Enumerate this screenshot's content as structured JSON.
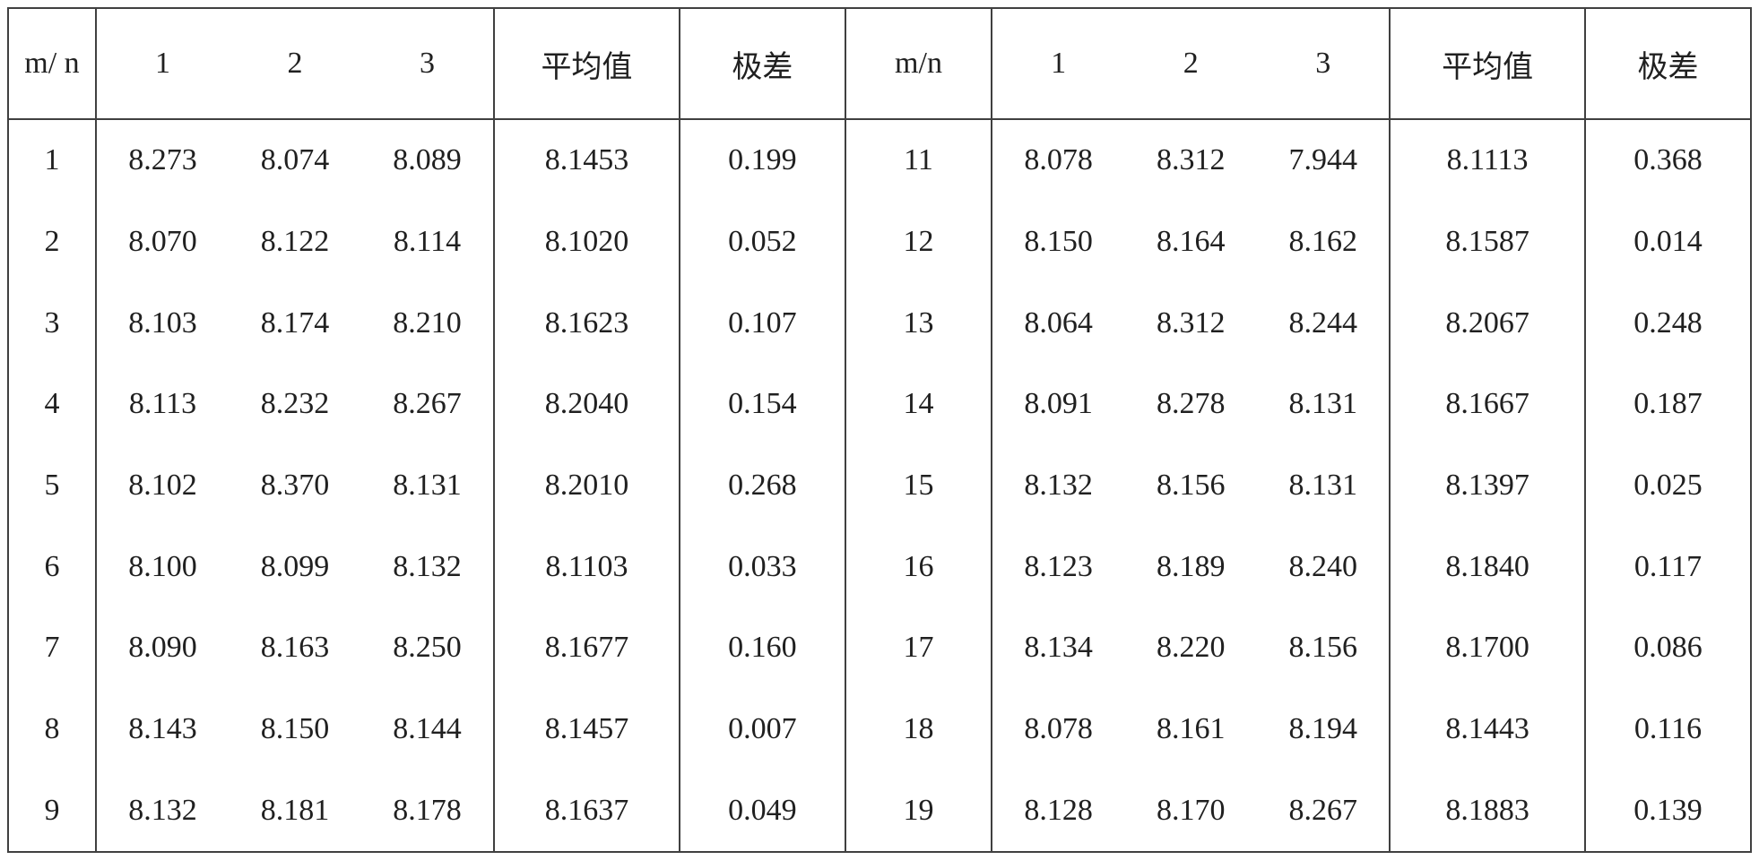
{
  "table": {
    "type": "table",
    "border_color": "#404040",
    "text_color": "#202020",
    "background_color": "#ffffff",
    "font_family": "Times New Roman / SimSun serif",
    "header_fontsize_pt": 26,
    "body_fontsize_pt": 26,
    "columns_left": {
      "mn": "m/\nn",
      "v1": "1",
      "v2": "2",
      "v3": "3",
      "avg": "平均值",
      "range": "极差"
    },
    "columns_right": {
      "mn": "m/n",
      "v1": "1",
      "v2": "2",
      "v3": "3",
      "avg": "平均值",
      "range": "极差"
    },
    "rows": [
      {
        "L": {
          "mn": "1",
          "v1": "8.273",
          "v2": "8.074",
          "v3": "8.089",
          "avg": "8.1453",
          "range": "0.199"
        },
        "R": {
          "mn": "11",
          "v1": "8.078",
          "v2": "8.312",
          "v3": "7.944",
          "avg": "8.1113",
          "range": "0.368"
        }
      },
      {
        "L": {
          "mn": "2",
          "v1": "8.070",
          "v2": "8.122",
          "v3": "8.114",
          "avg": "8.1020",
          "range": "0.052"
        },
        "R": {
          "mn": "12",
          "v1": "8.150",
          "v2": "8.164",
          "v3": "8.162",
          "avg": "8.1587",
          "range": "0.014"
        }
      },
      {
        "L": {
          "mn": "3",
          "v1": "8.103",
          "v2": "8.174",
          "v3": "8.210",
          "avg": "8.1623",
          "range": "0.107"
        },
        "R": {
          "mn": "13",
          "v1": "8.064",
          "v2": "8.312",
          "v3": "8.244",
          "avg": "8.2067",
          "range": "0.248"
        }
      },
      {
        "L": {
          "mn": "4",
          "v1": "8.113",
          "v2": "8.232",
          "v3": "8.267",
          "avg": "8.2040",
          "range": "0.154"
        },
        "R": {
          "mn": "14",
          "v1": "8.091",
          "v2": "8.278",
          "v3": "8.131",
          "avg": "8.1667",
          "range": "0.187"
        }
      },
      {
        "L": {
          "mn": "5",
          "v1": "8.102",
          "v2": "8.370",
          "v3": "8.131",
          "avg": "8.2010",
          "range": "0.268"
        },
        "R": {
          "mn": "15",
          "v1": "8.132",
          "v2": "8.156",
          "v3": "8.131",
          "avg": "8.1397",
          "range": "0.025"
        }
      },
      {
        "L": {
          "mn": "6",
          "v1": "8.100",
          "v2": "8.099",
          "v3": "8.132",
          "avg": "8.1103",
          "range": "0.033"
        },
        "R": {
          "mn": "16",
          "v1": "8.123",
          "v2": "8.189",
          "v3": "8.240",
          "avg": "8.1840",
          "range": "0.117"
        }
      },
      {
        "L": {
          "mn": "7",
          "v1": "8.090",
          "v2": "8.163",
          "v3": "8.250",
          "avg": "8.1677",
          "range": "0.160"
        },
        "R": {
          "mn": "17",
          "v1": "8.134",
          "v2": "8.220",
          "v3": "8.156",
          "avg": "8.1700",
          "range": "0.086"
        }
      },
      {
        "L": {
          "mn": "8",
          "v1": "8.143",
          "v2": "8.150",
          "v3": "8.144",
          "avg": "8.1457",
          "range": "0.007"
        },
        "R": {
          "mn": "18",
          "v1": "8.078",
          "v2": "8.161",
          "v3": "8.194",
          "avg": "8.1443",
          "range": "0.116"
        }
      },
      {
        "L": {
          "mn": "9",
          "v1": "8.132",
          "v2": "8.181",
          "v3": "8.178",
          "avg": "8.1637",
          "range": "0.049"
        },
        "R": {
          "mn": "19",
          "v1": "8.128",
          "v2": "8.170",
          "v3": "8.267",
          "avg": "8.1883",
          "range": "0.139"
        }
      }
    ],
    "column_group_borders": "vertical rules after mn, after v3 group, after avg, after range (both halves)",
    "row_borders": "only below header; no horizontal rules between body rows"
  }
}
